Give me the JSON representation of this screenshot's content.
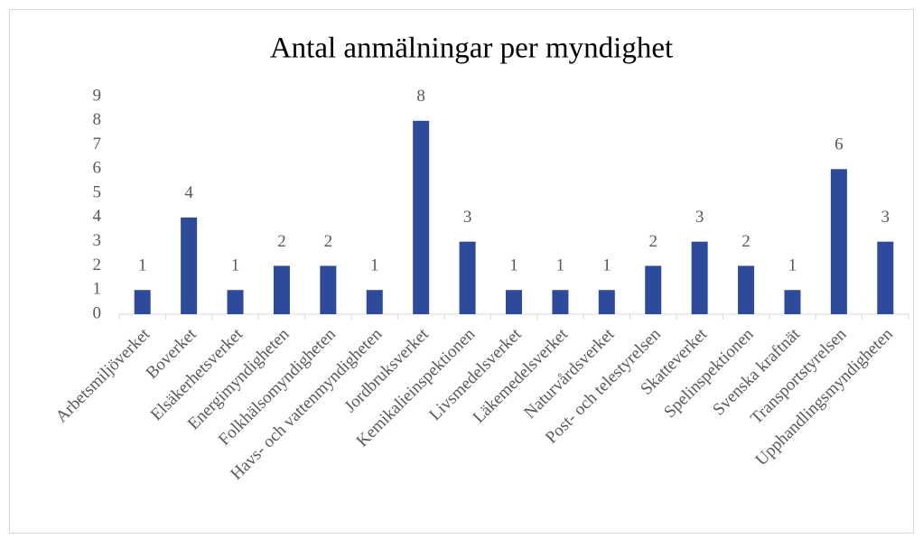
{
  "chart_data": {
    "type": "bar",
    "title": "Antal anmälningar per myndighet",
    "categories": [
      "Arbetsmiljöverket",
      "Boverket",
      "Elsäkerhetsverket",
      "Energimyndigheten",
      "Folkhälsomyndigheten",
      "Havs- och vattenmyndigheten",
      "Jordbruksverket",
      "Kemikalieinspektionen",
      "Livsmedelsverket",
      "Läkemedelsverket",
      "Naturvårdsverket",
      "Post- och telestyrelsen",
      "Skatteverket",
      "Spelinspektionen",
      "Svenska kraftnät",
      "Transportstyrelsen",
      "Upphandlingsmyndigheten"
    ],
    "values": [
      1,
      4,
      1,
      2,
      2,
      1,
      8,
      3,
      1,
      1,
      1,
      2,
      3,
      2,
      1,
      6,
      3
    ],
    "color": "#2e4b9b",
    "ylim": [
      0,
      9
    ],
    "yticks": [
      0,
      1,
      2,
      3,
      4,
      5,
      6,
      7,
      8,
      9
    ],
    "grid": false,
    "data_labels": true
  }
}
